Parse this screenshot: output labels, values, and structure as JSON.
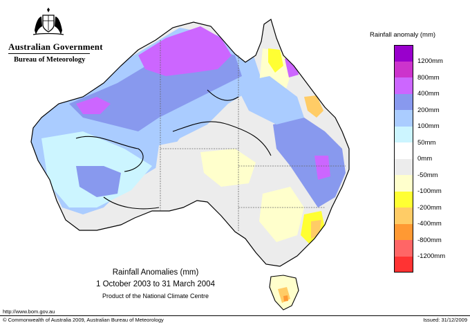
{
  "header": {
    "government": "Australian Government",
    "bureau": "Bureau of Meteorology"
  },
  "legend": {
    "title": "Rainfall anomaly (mm)",
    "items": [
      {
        "label": "1200mm",
        "color": "#9900cc"
      },
      {
        "label": "800mm",
        "color": "#cc33cc"
      },
      {
        "label": "400mm",
        "color": "#cc66ff"
      },
      {
        "label": "200mm",
        "color": "#8899ee"
      },
      {
        "label": "100mm",
        "color": "#aaccff"
      },
      {
        "label": "50mm",
        "color": "#ccf5ff"
      },
      {
        "label": "0mm",
        "color": "#ffffff"
      },
      {
        "label": "-50mm",
        "color": "#ececec"
      },
      {
        "label": "-100mm",
        "color": "#ffffcc"
      },
      {
        "label": "-200mm",
        "color": "#ffff33"
      },
      {
        "label": "-400mm",
        "color": "#ffcc66"
      },
      {
        "label": "-800mm",
        "color": "#ff9933"
      },
      {
        "label": "-1200mm",
        "color": "#ff6666"
      },
      {
        "label": "",
        "color": "#ff3333"
      }
    ]
  },
  "map": {
    "title": "Rainfall Anomalies (mm)",
    "period": "1 October 2003 to 31 March 2004",
    "product": "Product of the National Climate Centre"
  },
  "footer": {
    "url": "http://www.bom.gov.au",
    "copyright": "© Commonwealth of Australia 2009, Australian Bureau of Meteorology",
    "issued": "Issued: 31/12/2009"
  }
}
